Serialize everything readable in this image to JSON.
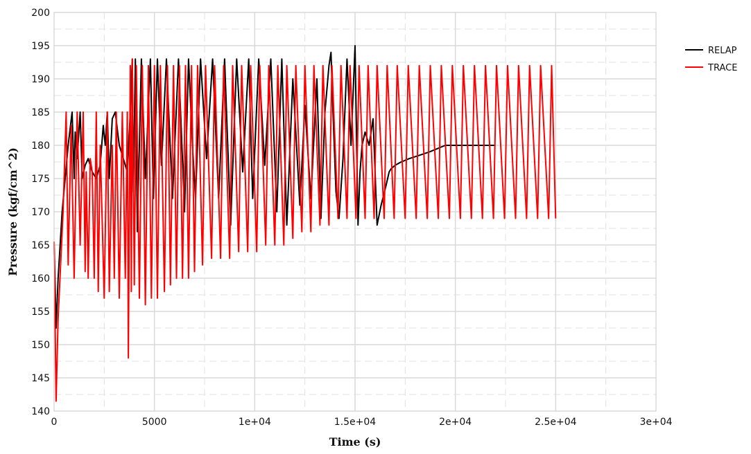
{
  "chart_data": {
    "type": "line",
    "xlabel": "Time (s)",
    "ylabel": "Pressure (kgf/cm^2)",
    "xlim": [
      0,
      30000
    ],
    "ylim": [
      140,
      200
    ],
    "x_ticks": [
      0,
      5000,
      10000,
      15000,
      20000,
      25000,
      30000
    ],
    "x_tick_labels": [
      "0",
      "5000",
      "1e+04",
      "1.5e+04",
      "2e+04",
      "2.5e+04",
      "3e+04"
    ],
    "y_ticks": [
      140,
      145,
      150,
      155,
      160,
      165,
      170,
      175,
      180,
      185,
      190,
      195,
      200
    ],
    "y_tick_labels": [
      "140",
      "145",
      "150",
      "155",
      "160",
      "165",
      "170",
      "175",
      "180",
      "185",
      "190",
      "195",
      "200"
    ],
    "grid": true,
    "legend_position": "right",
    "series": [
      {
        "name": "RELAP",
        "color": "#000000",
        "x": [
          0,
          100,
          200,
          400,
          700,
          900,
          1000,
          1050,
          1150,
          1300,
          1400,
          1550,
          1700,
          1900,
          2100,
          2300,
          2450,
          2550,
          2650,
          2750,
          2900,
          3050,
          3250,
          3450,
          3650,
          3800,
          3900,
          3950,
          4050,
          4150,
          4350,
          4550,
          4800,
          4950,
          5150,
          5350,
          5600,
          5900,
          6200,
          6500,
          6700,
          6900,
          7050,
          7300,
          7600,
          7900,
          8200,
          8500,
          8800,
          9100,
          9400,
          9700,
          9900,
          10200,
          10500,
          10800,
          11100,
          11350,
          11600,
          11900,
          12250,
          12500,
          12800,
          13100,
          13300,
          13500,
          13700,
          13800,
          13900,
          14050,
          14200,
          14400,
          14600,
          14800,
          15000,
          15150,
          15250,
          15350,
          15500,
          15700,
          15900,
          16100,
          16300,
          16550,
          16700,
          16800,
          17000,
          17300,
          17700,
          18200,
          18700,
          19100,
          19500,
          19800,
          20200,
          20700,
          21200,
          21600,
          22000
        ],
        "values": [
          165.5,
          152.5,
          160,
          170,
          180,
          185,
          175,
          182,
          178,
          185,
          175,
          177,
          178,
          176,
          175,
          177,
          183,
          180,
          185,
          175,
          184,
          185,
          180,
          178,
          176,
          185,
          193,
          173,
          193,
          167,
          193,
          175,
          193,
          172,
          193,
          177,
          193,
          172,
          193,
          170,
          193,
          180,
          172,
          193,
          178,
          193,
          172,
          193,
          168,
          193,
          176,
          193,
          172,
          193,
          177,
          193,
          170,
          193,
          168,
          190,
          171,
          186,
          172,
          190,
          169,
          185,
          192,
          194,
          185,
          173,
          169,
          178,
          193,
          180,
          195,
          168,
          176,
          180,
          182,
          180,
          184,
          168,
          171,
          174,
          176,
          176.5,
          177,
          177.5,
          178,
          178.5,
          179,
          179.5,
          180,
          180,
          180,
          180,
          180,
          180,
          180
        ]
      },
      {
        "name": "TRACE",
        "color": "#ff0000",
        "x": [
          0,
          100,
          200,
          450,
          600,
          700,
          850,
          1000,
          1150,
          1300,
          1450,
          1550,
          1600,
          1700,
          1800,
          1900,
          2000,
          2100,
          2200,
          2300,
          2500,
          2650,
          2750,
          2900,
          3000,
          3100,
          3250,
          3400,
          3550,
          3650,
          3700,
          3800,
          3850,
          3900,
          4000,
          4100,
          4250,
          4400,
          4550,
          4700,
          4850,
          5000,
          5150,
          5300,
          5500,
          5650,
          5800,
          5950,
          6100,
          6250,
          6400,
          6550,
          6700,
          6850,
          7000,
          7150,
          7400,
          7550,
          7850,
          8000,
          8300,
          8450,
          8750,
          8900,
          9200,
          9350,
          9650,
          9800,
          10100,
          10250,
          10550,
          10700,
          11000,
          11150,
          11450,
          11600,
          11900,
          12050,
          12350,
          12500,
          12800,
          12950,
          13250,
          13400,
          13700,
          13850,
          14150,
          14300,
          14600,
          14750,
          15050,
          15200,
          15500,
          15650,
          15950,
          16100,
          16450,
          16600,
          16950,
          17100,
          17500,
          17650,
          18050,
          18200,
          18600,
          18750,
          19150,
          19300,
          19700,
          19850,
          20250,
          20400,
          20800,
          20950,
          21350,
          21500,
          21900,
          22050,
          22450,
          22600,
          23000,
          23150,
          23550,
          23700,
          24100,
          24250,
          24650,
          24800,
          25000
        ],
        "values": [
          165.5,
          141.5,
          154,
          170,
          185,
          162,
          183,
          160,
          185,
          165,
          185,
          161,
          176,
          160,
          178,
          176,
          160,
          185,
          158,
          180,
          157,
          185,
          158,
          180,
          160,
          185,
          157,
          185,
          160,
          185,
          148,
          192,
          158,
          193,
          159,
          192,
          157,
          192,
          156,
          192,
          157,
          192,
          157,
          192,
          158,
          192,
          159,
          192,
          160,
          192,
          160,
          192,
          160,
          192,
          161,
          192,
          162,
          192,
          163,
          192,
          163,
          192,
          163,
          192,
          164,
          192,
          164,
          192,
          164,
          192,
          165,
          192,
          165,
          192,
          165,
          192,
          166,
          192,
          167,
          192,
          167,
          192,
          168,
          192,
          168,
          192,
          169,
          192,
          169,
          192,
          169,
          192,
          169,
          192,
          169,
          192,
          169,
          192,
          169,
          192,
          169,
          192,
          169,
          192,
          169,
          192,
          169,
          192,
          169,
          192,
          169,
          192,
          169,
          192,
          169,
          192,
          169,
          192,
          169,
          192,
          169,
          192,
          169,
          192,
          169,
          192,
          169,
          192,
          169
        ]
      }
    ]
  }
}
